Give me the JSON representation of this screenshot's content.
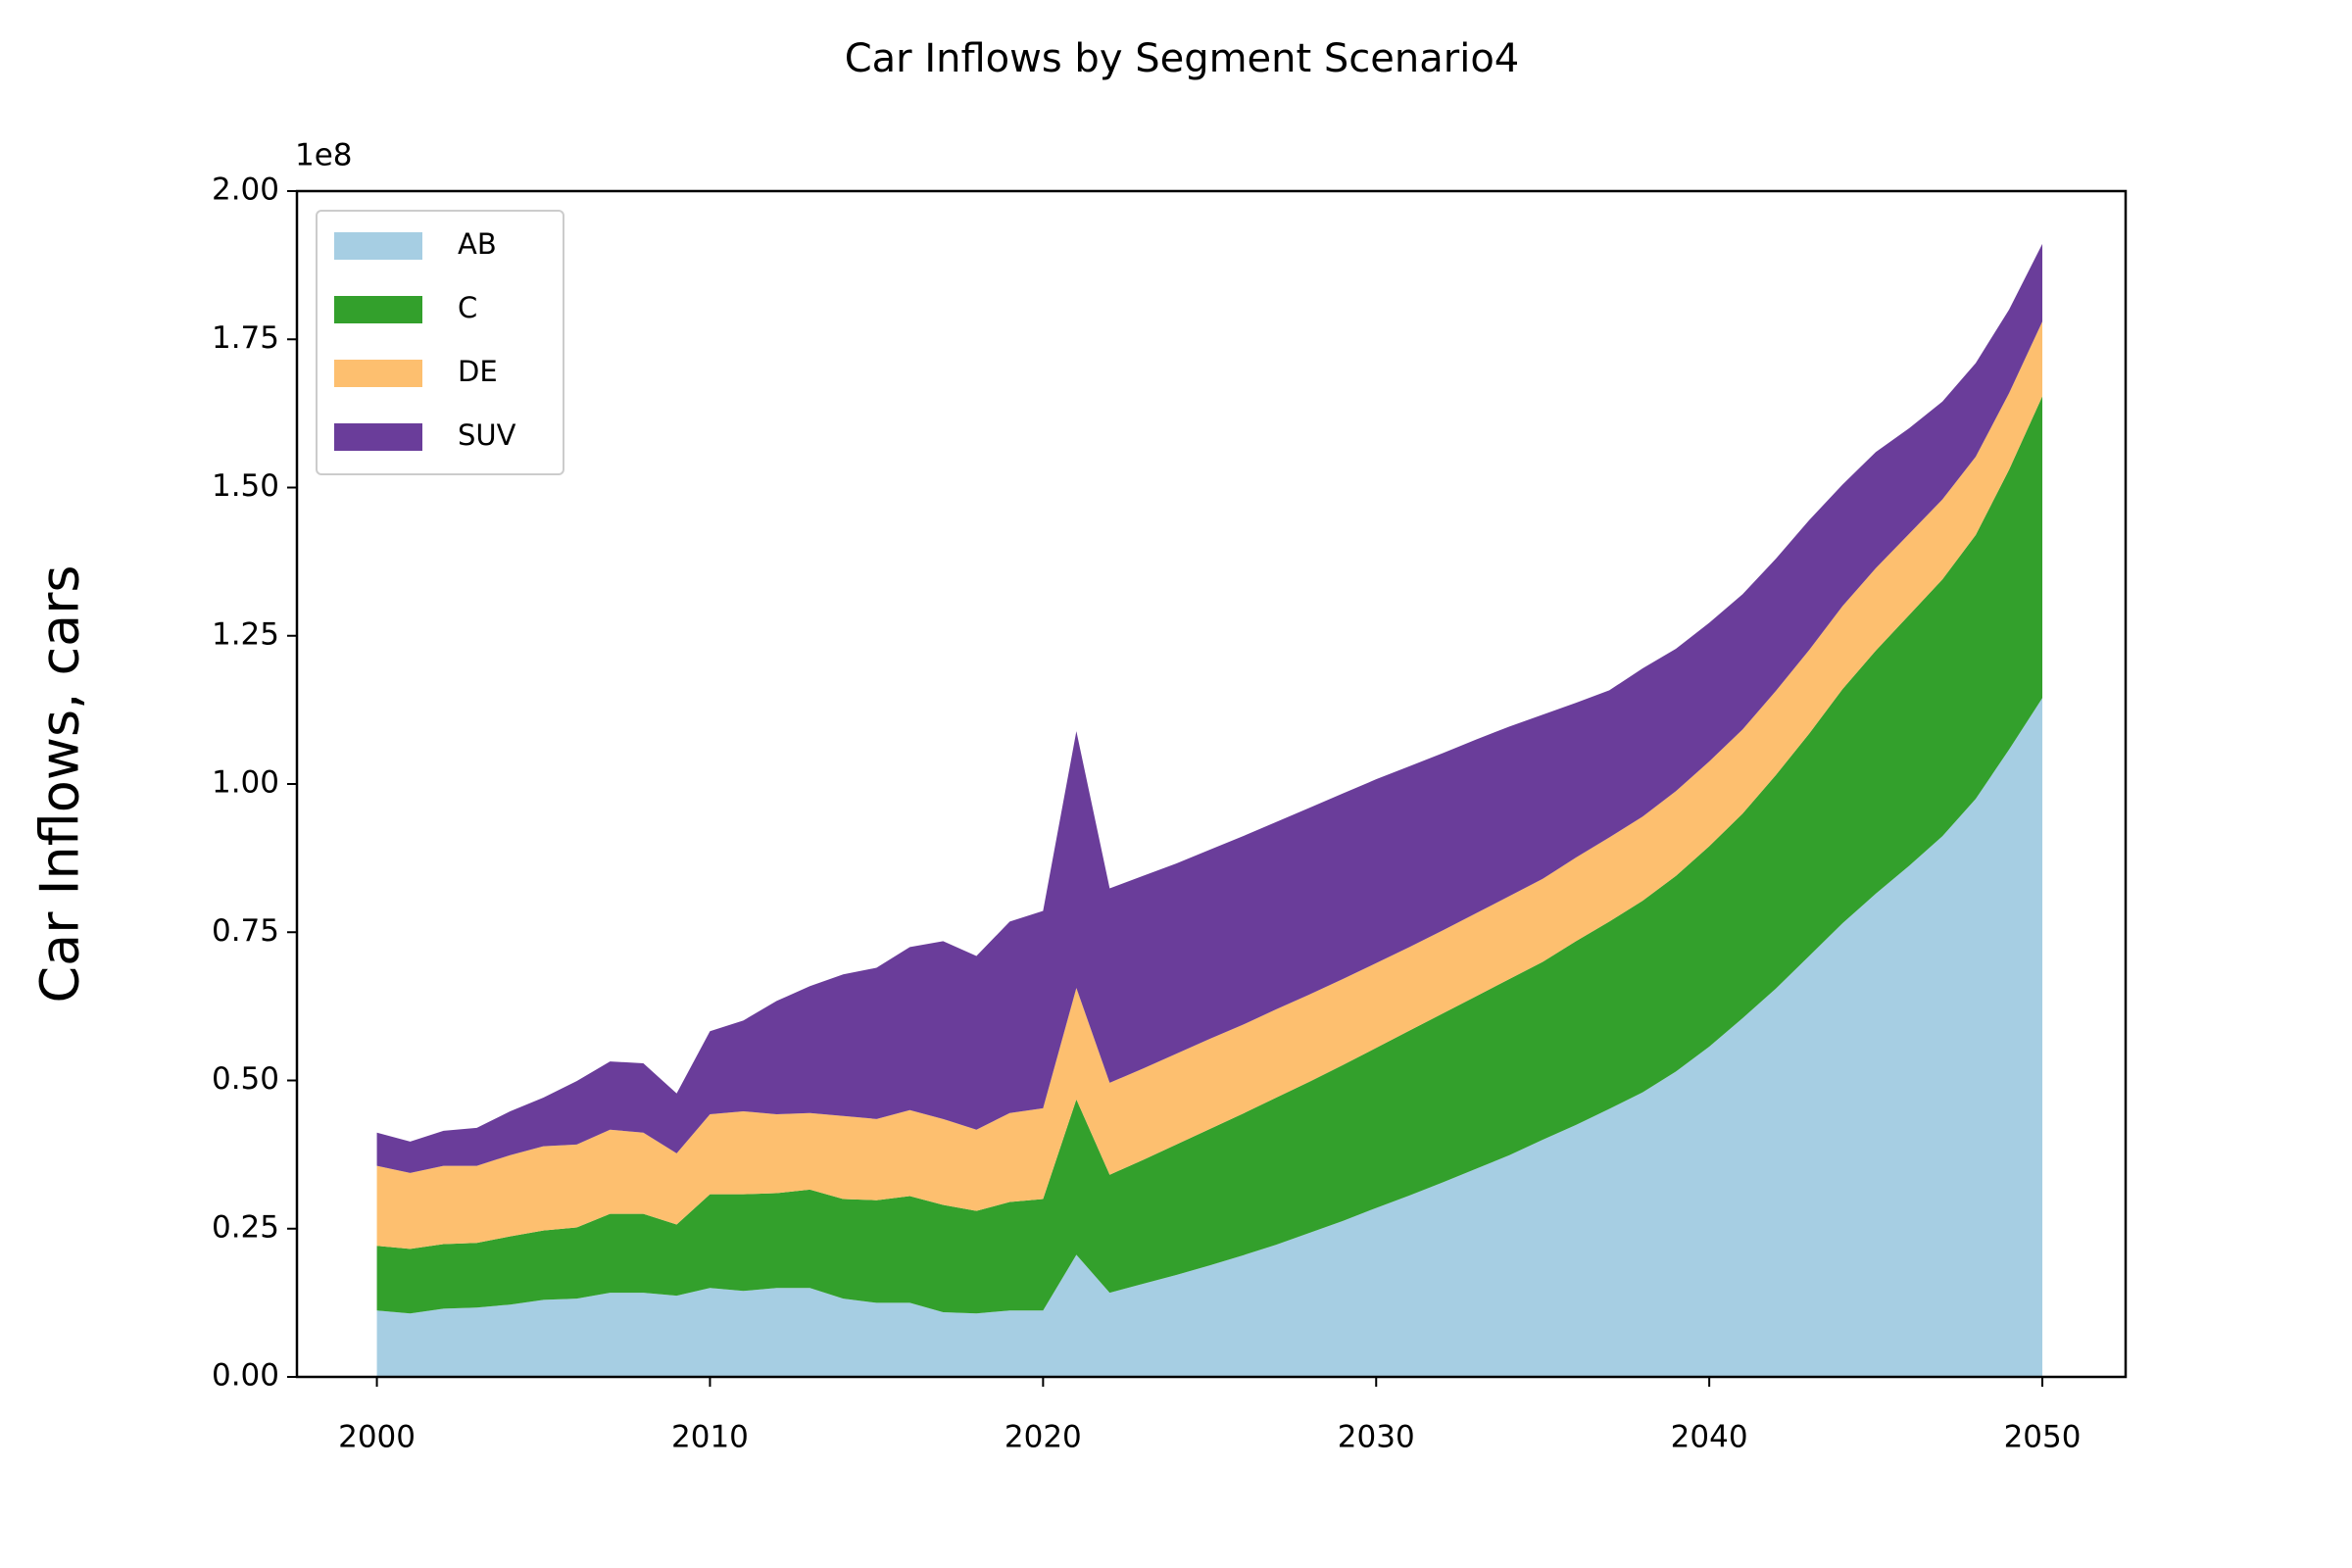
{
  "chart_data": {
    "type": "stacked_area",
    "title": "Car Inflows by Segment Scenario4",
    "y_label": "Car Inflows, cars",
    "y_offset_label": "1e8",
    "x": [
      2000,
      2001,
      2002,
      2003,
      2004,
      2005,
      2006,
      2007,
      2008,
      2009,
      2010,
      2011,
      2012,
      2013,
      2014,
      2015,
      2016,
      2017,
      2018,
      2019,
      2020,
      2021,
      2022,
      2023,
      2024,
      2025,
      2026,
      2027,
      2028,
      2029,
      2030,
      2031,
      2032,
      2033,
      2034,
      2035,
      2036,
      2037,
      2038,
      2039,
      2040,
      2041,
      2042,
      2043,
      2044,
      2045,
      2046,
      2047,
      2048,
      2049,
      2050
    ],
    "series": [
      {
        "name": "AB",
        "color": "#a6cee3",
        "values": [
          0.112,
          0.107,
          0.115,
          0.117,
          0.122,
          0.13,
          0.132,
          0.142,
          0.142,
          0.137,
          0.15,
          0.145,
          0.15,
          0.15,
          0.132,
          0.125,
          0.125,
          0.109,
          0.107,
          0.112,
          0.112,
          0.206,
          0.142,
          0.157,
          0.172,
          0.188,
          0.205,
          0.223,
          0.243,
          0.263,
          0.285,
          0.306,
          0.328,
          0.351,
          0.374,
          0.4,
          0.425,
          0.452,
          0.48,
          0.515,
          0.557,
          0.605,
          0.655,
          0.71,
          0.765,
          0.815,
          0.862,
          0.912,
          0.975,
          1.058,
          1.145
        ]
      },
      {
        "name": "C",
        "color": "#33a02c",
        "values": [
          0.109,
          0.109,
          0.109,
          0.109,
          0.115,
          0.117,
          0.12,
          0.133,
          0.133,
          0.12,
          0.158,
          0.163,
          0.16,
          0.166,
          0.168,
          0.173,
          0.18,
          0.181,
          0.173,
          0.183,
          0.188,
          0.262,
          0.199,
          0.209,
          0.22,
          0.23,
          0.239,
          0.248,
          0.255,
          0.263,
          0.27,
          0.278,
          0.285,
          0.291,
          0.297,
          0.3,
          0.31,
          0.316,
          0.323,
          0.33,
          0.338,
          0.345,
          0.36,
          0.375,
          0.395,
          0.41,
          0.423,
          0.433,
          0.445,
          0.472,
          0.509
        ]
      },
      {
        "name": "DE",
        "color": "#fdbf6f",
        "values": [
          0.135,
          0.128,
          0.132,
          0.13,
          0.137,
          0.142,
          0.14,
          0.142,
          0.137,
          0.12,
          0.135,
          0.14,
          0.133,
          0.129,
          0.14,
          0.137,
          0.145,
          0.145,
          0.137,
          0.15,
          0.153,
          0.188,
          0.155,
          0.154,
          0.153,
          0.152,
          0.15,
          0.149,
          0.147,
          0.145,
          0.143,
          0.141,
          0.14,
          0.14,
          0.14,
          0.14,
          0.141,
          0.142,
          0.142,
          0.143,
          0.143,
          0.142,
          0.142,
          0.141,
          0.14,
          0.139,
          0.137,
          0.135,
          0.132,
          0.129,
          0.126
        ]
      },
      {
        "name": "SUV",
        "color": "#6a3d9a",
        "values": [
          0.056,
          0.053,
          0.059,
          0.064,
          0.074,
          0.082,
          0.107,
          0.115,
          0.117,
          0.101,
          0.14,
          0.153,
          0.191,
          0.214,
          0.239,
          0.255,
          0.275,
          0.3,
          0.293,
          0.323,
          0.333,
          0.433,
          0.328,
          0.325,
          0.321,
          0.319,
          0.318,
          0.316,
          0.315,
          0.313,
          0.31,
          0.305,
          0.299,
          0.293,
          0.286,
          0.277,
          0.261,
          0.248,
          0.25,
          0.24,
          0.234,
          0.228,
          0.223,
          0.219,
          0.205,
          0.196,
          0.178,
          0.165,
          0.158,
          0.141,
          0.131
        ]
      }
    ],
    "xlim": [
      1997.6,
      2052.5
    ],
    "xticks": [
      2000,
      2010,
      2020,
      2030,
      2040,
      2050
    ],
    "ylim": [
      0,
      2
    ],
    "yticks": [
      {
        "value": 0,
        "label": "0.00"
      },
      {
        "value": 0.25,
        "label": "0.25"
      },
      {
        "value": 0.5,
        "label": "0.50"
      },
      {
        "value": 0.75,
        "label": "0.75"
      },
      {
        "value": 1,
        "label": "1.00"
      },
      {
        "value": 1.25,
        "label": "1.25"
      },
      {
        "value": 1.5,
        "label": "1.50"
      },
      {
        "value": 1.75,
        "label": "1.75"
      },
      {
        "value": 2,
        "label": "2.00"
      }
    ],
    "legend": "upper left"
  }
}
